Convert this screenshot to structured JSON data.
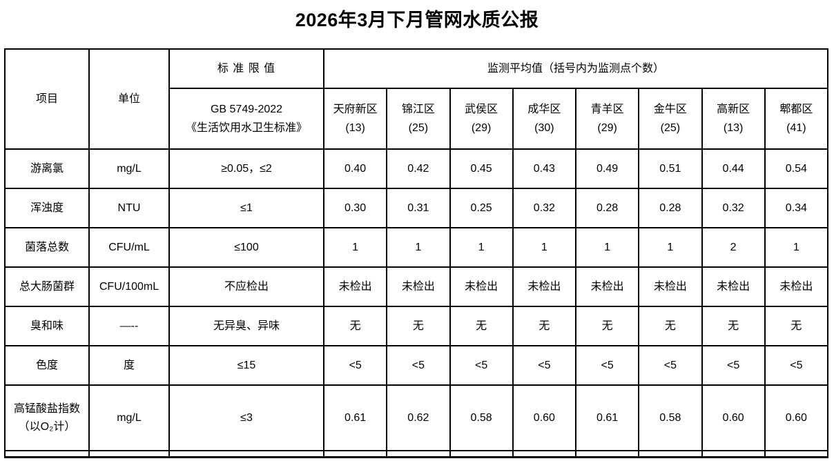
{
  "page_title": "2026年3月下月管网水质公报",
  "colors": {
    "border": "#000000",
    "text": "#000000",
    "background": "#ffffff"
  },
  "table": {
    "header": {
      "item": "项目",
      "unit": "单位",
      "standard_group": "标 准 限 值",
      "standard_code": "GB 5749-2022",
      "standard_doc": "《生活饮用水卫生标准》",
      "monitor_group": "监测平均值（括号内为监测点个数）",
      "districts": [
        {
          "name": "天府新区",
          "points": "(13)"
        },
        {
          "name": "锦江区",
          "points": "(25)"
        },
        {
          "name": "武侯区",
          "points": "(29)"
        },
        {
          "name": "成华区",
          "points": "(30)"
        },
        {
          "name": "青羊区",
          "points": "(29)"
        },
        {
          "name": "金牛区",
          "points": "(25)"
        },
        {
          "name": "高新区",
          "points": "(13)"
        },
        {
          "name": "郫都区",
          "points": "(41)"
        }
      ]
    },
    "rows": [
      {
        "item": "游离氯",
        "unit": "mg/L",
        "standard": "≥0.05，≤2",
        "values": [
          "0.40",
          "0.42",
          "0.45",
          "0.43",
          "0.49",
          "0.51",
          "0.44",
          "0.54"
        ]
      },
      {
        "item": "浑浊度",
        "unit": "NTU",
        "standard": "≤1",
        "values": [
          "0.30",
          "0.31",
          "0.25",
          "0.32",
          "0.28",
          "0.28",
          "0.32",
          "0.34"
        ]
      },
      {
        "item": "菌落总数",
        "unit": "CFU/mL",
        "standard": "≤100",
        "values": [
          "1",
          "1",
          "1",
          "1",
          "1",
          "1",
          "2",
          "1"
        ]
      },
      {
        "item": "总大肠菌群",
        "unit": "CFU/100mL",
        "standard": "不应检出",
        "values": [
          "未检出",
          "未检出",
          "未检出",
          "未检出",
          "未检出",
          "未检出",
          "未检出",
          "未检出"
        ]
      },
      {
        "item": "臭和味",
        "unit": "—--",
        "standard": "无异臭、异味",
        "values": [
          "无",
          "无",
          "无",
          "无",
          "无",
          "无",
          "无",
          "无"
        ]
      },
      {
        "item": "色度",
        "unit": "度",
        "standard": "≤15",
        "values": [
          "<5",
          "<5",
          "<5",
          "<5",
          "<5",
          "<5",
          "<5",
          "<5"
        ]
      },
      {
        "item": "高锰酸盐指数（以O₂计）",
        "unit": "mg/L",
        "standard": "≤3",
        "values": [
          "0.61",
          "0.62",
          "0.58",
          "0.60",
          "0.61",
          "0.58",
          "0.60",
          "0.60"
        ]
      }
    ]
  }
}
